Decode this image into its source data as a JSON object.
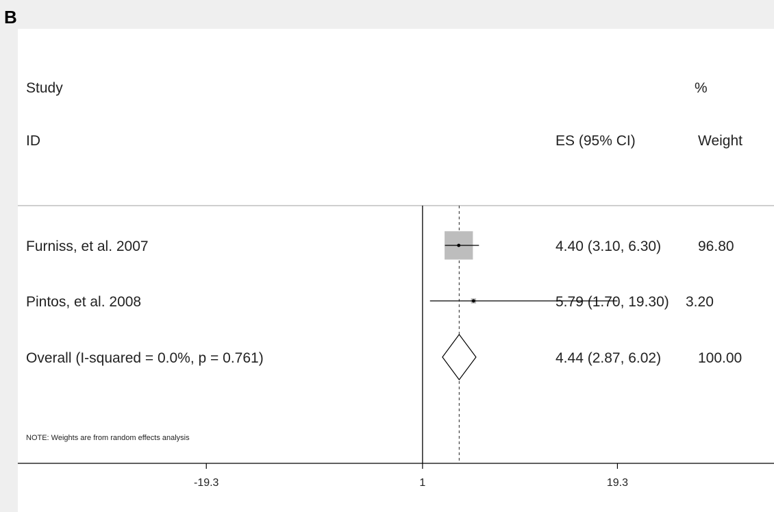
{
  "panel_label": "B",
  "header": {
    "study_label": "Study",
    "id_label": "ID",
    "es_label": "ES (95% CI)",
    "pct_label": "%",
    "weight_label": "Weight"
  },
  "note": "NOTE: Weights are from random effects analysis",
  "chart_data": {
    "type": "forest",
    "null_line": 1,
    "xticks": [
      -19.3,
      1,
      19.3
    ],
    "xtick_labels": [
      "-19.3",
      "1",
      "19.3"
    ],
    "xlim": [
      -37.0,
      34.0
    ],
    "studies": [
      {
        "id": "Furniss, et al. 2007",
        "es": 4.4,
        "lo": 3.1,
        "hi": 6.3,
        "es_text": "4.40 (3.10, 6.30)",
        "weight": 96.8,
        "weight_text": "96.80"
      },
      {
        "id": "Pintos, et al. 2008",
        "es": 5.79,
        "lo": 1.7,
        "hi": 19.3,
        "es_text": "5.79 (1.70, 19.30)",
        "weight": 3.2,
        "weight_text": "3.20"
      }
    ],
    "overall": {
      "id": "Overall  (I-squared = 0.0%, p = 0.761)",
      "es": 4.44,
      "lo": 2.87,
      "hi": 6.02,
      "es_text": "4.44 (2.87, 6.02)",
      "weight_text": "100.00"
    }
  },
  "colors": {
    "box": "#bdbdbd",
    "line": "#000000",
    "axis": "#000000",
    "frame": "#bfbfbf"
  }
}
